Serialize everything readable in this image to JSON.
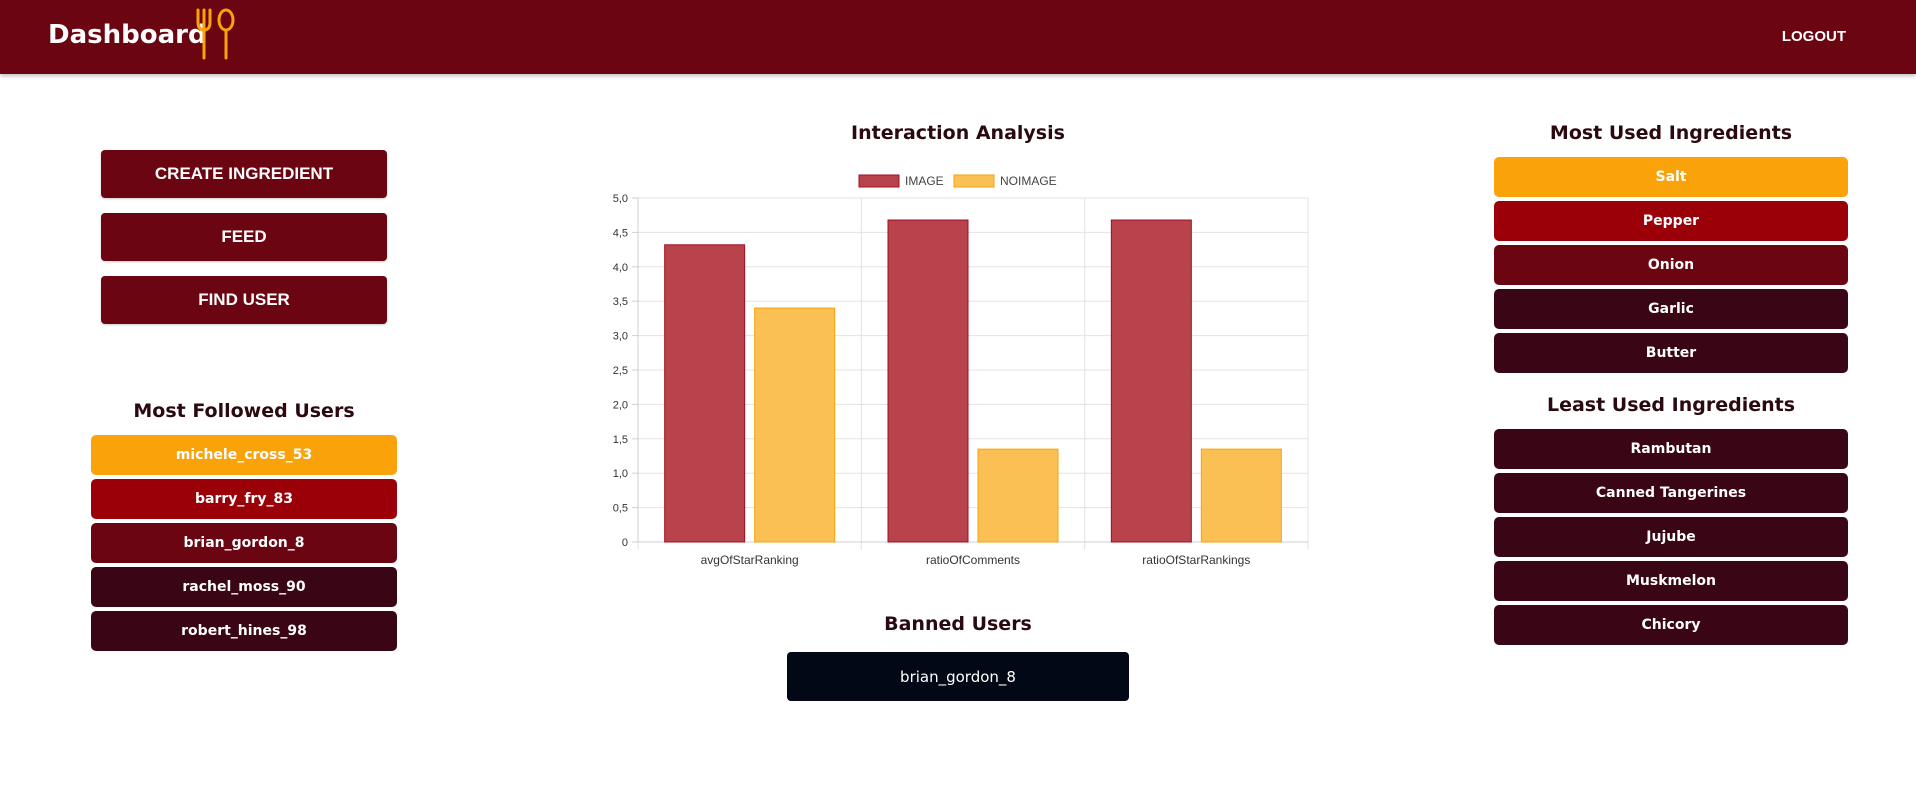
{
  "header": {
    "title": "Dashboard",
    "logout_label": "LOGOUT",
    "icon": "fork-spoon-icon"
  },
  "actions": [
    {
      "label": "CREATE INGREDIENT"
    },
    {
      "label": "FEED"
    },
    {
      "label": "FIND USER"
    }
  ],
  "followed": {
    "title": "Most Followed Users",
    "items": [
      {
        "label": "michele_cross_53",
        "color": "#f9a20a"
      },
      {
        "label": "barry_fry_83",
        "color": "#9b0008"
      },
      {
        "label": "brian_gordon_8",
        "color": "#6b0511"
      },
      {
        "label": "rachel_moss_90",
        "color": "#3a0515"
      },
      {
        "label": "robert_hines_98",
        "color": "#3a0515"
      }
    ]
  },
  "most_used": {
    "title": "Most Used Ingredients",
    "items": [
      {
        "label": "Salt",
        "color": "#f9a20a"
      },
      {
        "label": "Pepper",
        "color": "#9b0008"
      },
      {
        "label": "Onion",
        "color": "#6b0511"
      },
      {
        "label": "Garlic",
        "color": "#3a0515"
      },
      {
        "label": "Butter",
        "color": "#3a0515"
      }
    ]
  },
  "least_used": {
    "title": "Least Used Ingredients",
    "items": [
      {
        "label": "Rambutan",
        "color": "#3a0515"
      },
      {
        "label": "Canned Tangerines",
        "color": "#3a0515"
      },
      {
        "label": "Jujube",
        "color": "#3a0515"
      },
      {
        "label": "Muskmelon",
        "color": "#3a0515"
      },
      {
        "label": "Chicory",
        "color": "#3a0515"
      }
    ]
  },
  "banned": {
    "title": "Banned Users",
    "user": "brian_gordon_8"
  },
  "chart_data": {
    "type": "bar",
    "title": "Interaction Analysis",
    "categories": [
      "avgOfStarRanking",
      "ratioOfComments",
      "ratioOfStarRankings"
    ],
    "series": [
      {
        "name": "IMAGE",
        "values": [
          4.32,
          4.68,
          4.68
        ],
        "color": "#b8434d"
      },
      {
        "name": "NOIMAGE",
        "values": [
          3.4,
          1.35,
          1.35
        ],
        "color": "#fac054"
      }
    ],
    "ylim": [
      0,
      5
    ],
    "yticks": [
      "0",
      "0,5",
      "1,0",
      "1,5",
      "2,0",
      "2,5",
      "3,0",
      "3,5",
      "4,0",
      "4,5",
      "5,0"
    ],
    "grid": true,
    "legend": "top"
  }
}
